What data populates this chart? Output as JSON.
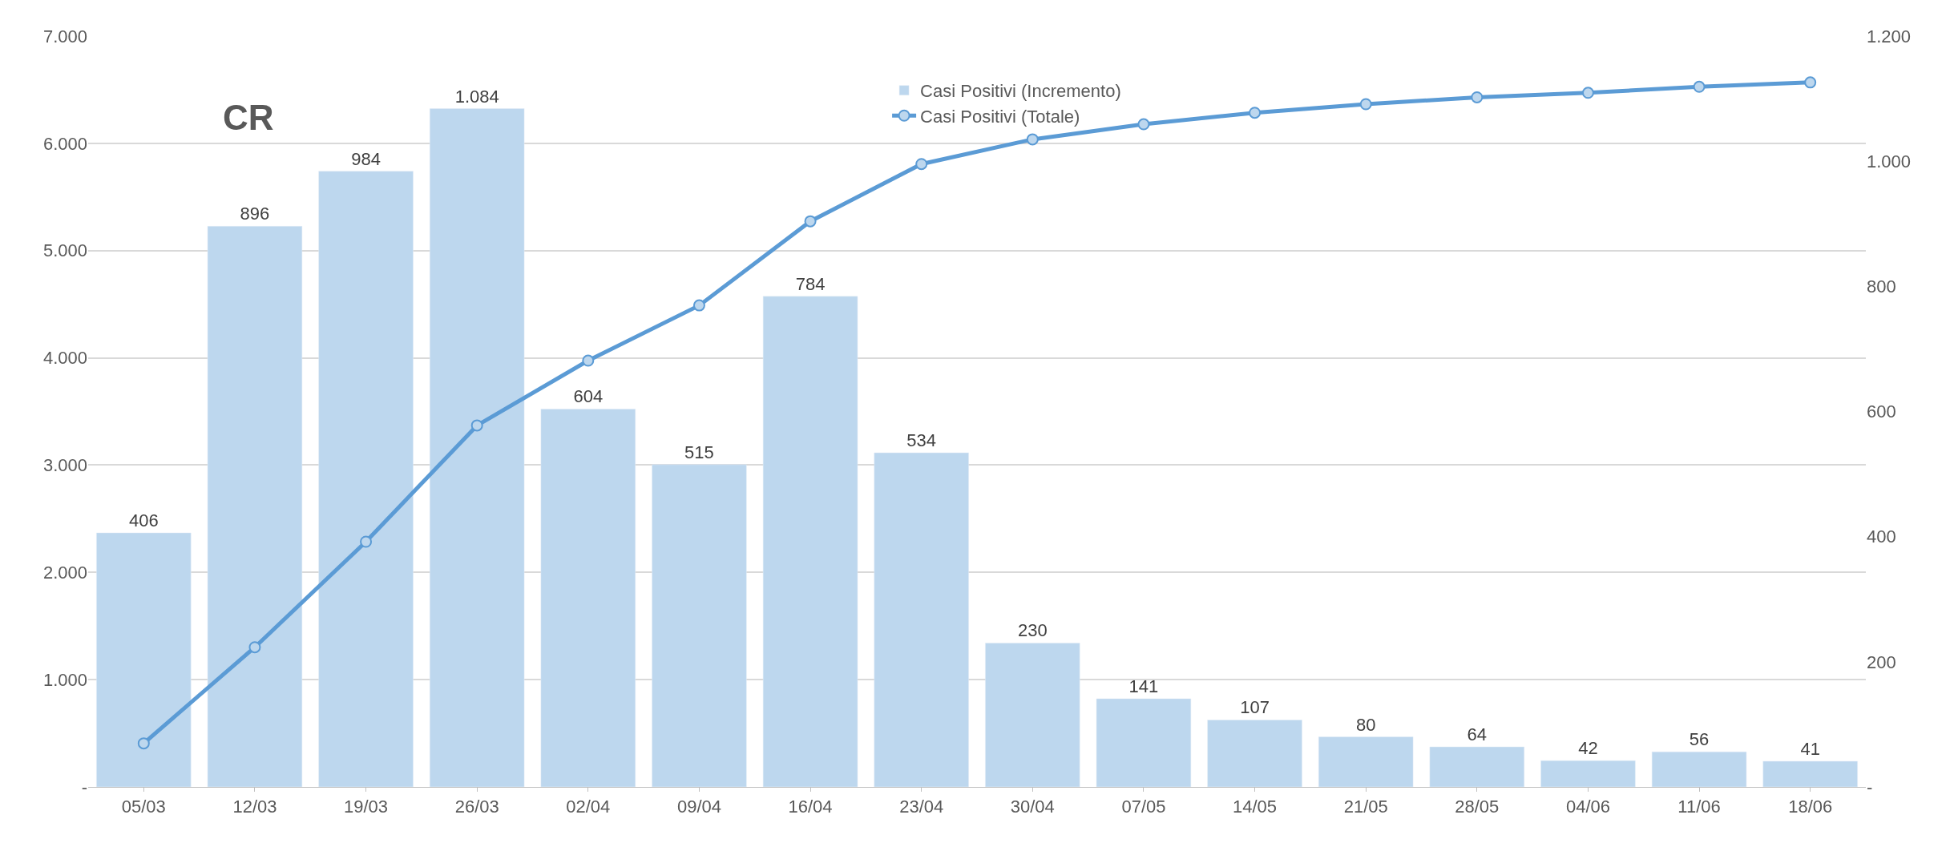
{
  "chart_data": {
    "type": "bar",
    "title": "CR",
    "categories": [
      "05/03",
      "12/03",
      "19/03",
      "26/03",
      "02/04",
      "09/04",
      "16/04",
      "23/04",
      "30/04",
      "07/05",
      "14/05",
      "21/05",
      "28/05",
      "04/06",
      "11/06",
      "18/06"
    ],
    "series": [
      {
        "name": "Casi Positivi (Incremento)",
        "axis": "y2",
        "color": "#bdd7ee",
        "values": [
          406,
          896,
          984,
          1084,
          604,
          515,
          784,
          534,
          230,
          141,
          107,
          80,
          64,
          42,
          56,
          41
        ],
        "value_labels": [
          "406",
          "896",
          "984",
          "1.084",
          "604",
          "515",
          "784",
          "534",
          "230",
          "141",
          "107",
          "80",
          "64",
          "42",
          "56",
          "41"
        ]
      },
      {
        "name": "Casi Positivi (Totale)",
        "type": "line",
        "axis": "y",
        "color": "#5b9bd5",
        "marker": "circle",
        "line_style": "solid",
        "values": [
          406,
          1302,
          2286,
          3370,
          3974,
          4489,
          5273,
          5807,
          6037,
          6178,
          6285,
          6365,
          6429,
          6471,
          6527,
          6568
        ]
      }
    ],
    "ylim": [
      0,
      7000
    ],
    "yticks": [
      {
        "value": 0,
        "label": "-"
      },
      {
        "value": 1000,
        "label": "1.000"
      },
      {
        "value": 2000,
        "label": "2.000"
      },
      {
        "value": 3000,
        "label": "3.000"
      },
      {
        "value": 4000,
        "label": "4.000"
      },
      {
        "value": 5000,
        "label": "5.000"
      },
      {
        "value": 6000,
        "label": "6.000"
      },
      {
        "value": 7000,
        "label": "7.000"
      }
    ],
    "y2lim": [
      0,
      1200
    ],
    "y2ticks": [
      {
        "value": 0,
        "label": "-"
      },
      {
        "value": 200,
        "label": "200"
      },
      {
        "value": 400,
        "label": "400"
      },
      {
        "value": 600,
        "label": "600"
      },
      {
        "value": 800,
        "label": "800"
      },
      {
        "value": 1000,
        "label": "1.000"
      },
      {
        "value": 1200,
        "label": "1.200"
      }
    ],
    "grid": "y",
    "legend": "top right"
  }
}
